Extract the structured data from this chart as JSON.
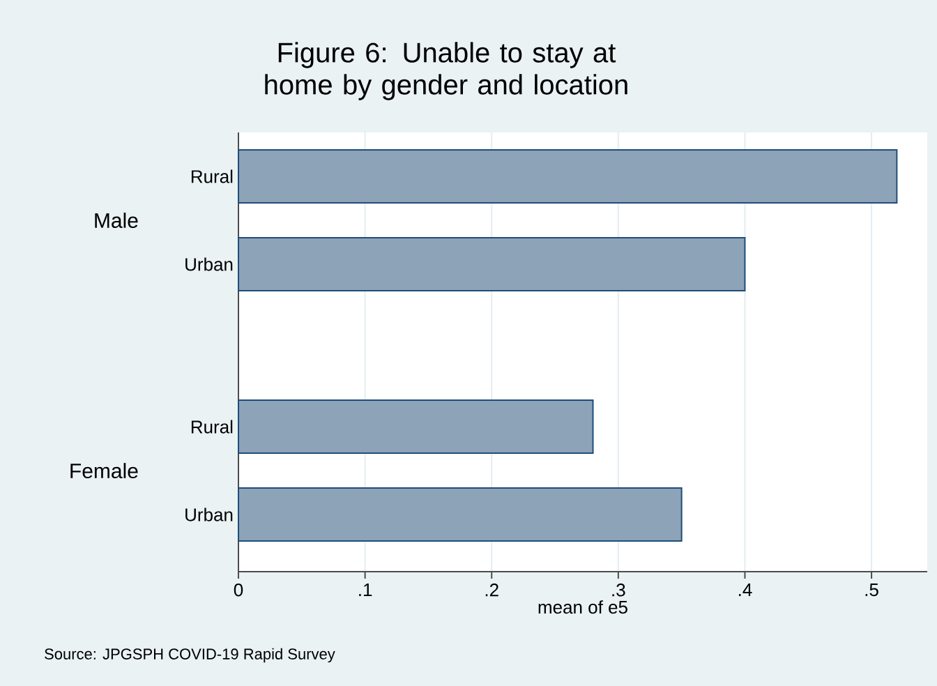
{
  "chart_data": {
    "type": "bar",
    "orientation": "horizontal",
    "title": "Figure 6: Unable to stay at home by gender and location",
    "xlabel": "mean of e5",
    "categories": [
      "Rural",
      "Urban",
      "Rural",
      "Urban"
    ],
    "values": [
      0.52,
      0.4,
      0.28,
      0.35
    ],
    "color": "#8da3b8",
    "xlim": [
      0,
      0.544
    ],
    "xticks": [
      0,
      {
        "value": 0.1,
        "label": ".1"
      },
      {
        "value": 0.2,
        "label": ".2"
      },
      {
        "value": 0.3,
        "label": ".3"
      },
      {
        "value": 0.4,
        "label": ".4"
      },
      {
        "value": 0.5,
        "label": ".5"
      }
    ],
    "grid": "x",
    "annotations": [
      "Male",
      "Female",
      "Source: JPGSPH COVID-19 Rapid Survey"
    ]
  }
}
